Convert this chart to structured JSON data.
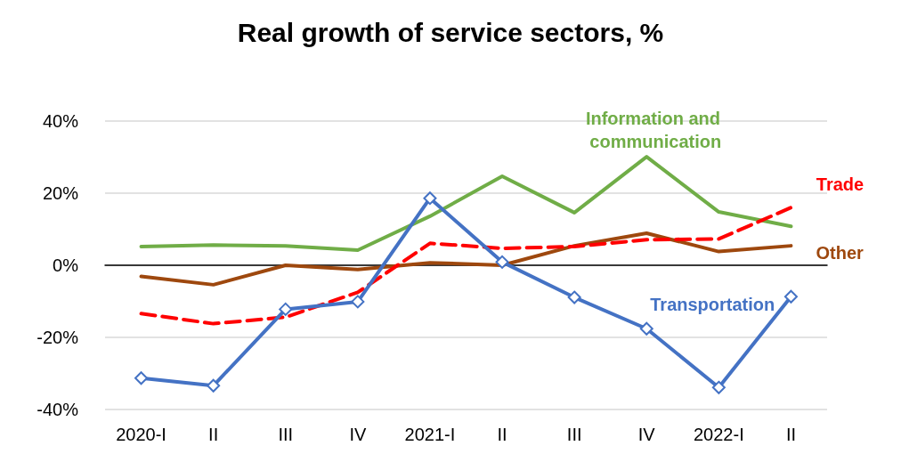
{
  "chart_data": {
    "type": "line",
    "title": "Real growth of service sectors, %",
    "categories": [
      "2020-I",
      "II",
      "III",
      "IV",
      "2021-I",
      "II",
      "III",
      "IV",
      "2022-I",
      "II"
    ],
    "series": [
      {
        "name": "Information and communication",
        "color": "#70ad47",
        "values": [
          5.2,
          5.6,
          5.4,
          4.2,
          13.6,
          24.7,
          14.6,
          30.1,
          14.8,
          10.8
        ]
      },
      {
        "name": "Other",
        "color": "#9e480e",
        "values": [
          -3.1,
          -5.4,
          0,
          -1.2,
          0.7,
          0,
          5.4,
          8.9,
          3.8,
          5.4
        ]
      },
      {
        "name": "Trade",
        "color": "#ff0000",
        "line_style": "dashed",
        "values": [
          -13.4,
          -16.2,
          -14.4,
          -7.5,
          6.1,
          4.7,
          5.2,
          7.1,
          7.3,
          16
        ]
      },
      {
        "name": "Transportation",
        "color": "#4472c4",
        "marker": "diamond",
        "values": [
          -31.3,
          -33.4,
          -12.2,
          -10.1,
          18.6,
          0.9,
          -8.9,
          -17.6,
          -33.9,
          -8.7
        ]
      }
    ],
    "ylim": [
      -40,
      40
    ],
    "yticks": [
      {
        "value": -40,
        "label": "-40%"
      },
      {
        "value": -20,
        "label": "-20%"
      },
      {
        "value": 0,
        "label": "0%"
      },
      {
        "value": 20,
        "label": "20%"
      },
      {
        "value": 40,
        "label": "40%"
      }
    ],
    "grid": "y",
    "legend": false,
    "marker": "none",
    "line_style": "solid"
  }
}
